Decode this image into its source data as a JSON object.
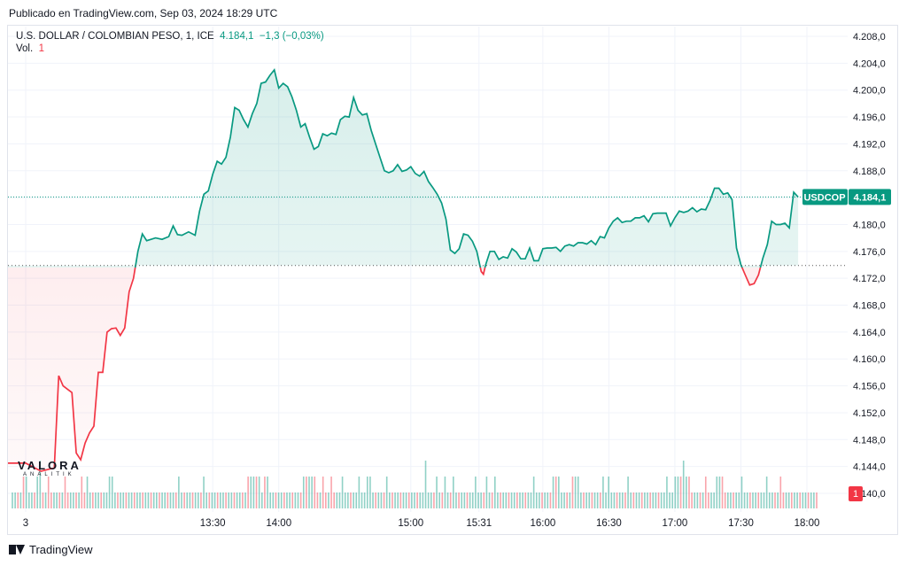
{
  "published": "Publicado en TradingView.com, Sep 03, 2024 18:29 UTC",
  "legend": {
    "symbol": "U.S. DOLLAR / COLOMBIAN PESO, 1, ICE",
    "last": "4.184,1",
    "change": "−1,3 (−0,03%)",
    "vol_label": "Vol.",
    "vol_value": "1"
  },
  "price_tag": {
    "symbol": "USDCOP",
    "value": "4.184,1"
  },
  "volume_tag": "1",
  "watermark": {
    "name": "VALORA",
    "sub": "ANALITIK"
  },
  "footer": {
    "brand": "TradingView"
  },
  "colors": {
    "up": "#089981",
    "down": "#f23645",
    "grid": "#f0f3fa",
    "text": "#131722"
  },
  "chart_data": {
    "type": "area",
    "y_ticks": [
      "4.208,0",
      "4.204,0",
      "4.200,0",
      "4.196,0",
      "4.192,0",
      "4.188,0",
      "4.184,0",
      "4.180,0",
      "4.176,0",
      "4.172,0",
      "4.168,0",
      "4.164,0",
      "4.160,0",
      "4.156,0",
      "4.152,0",
      "4.148,0",
      "4.144,0",
      "4.140,0"
    ],
    "ylim": [
      4139,
      4209
    ],
    "x_ticks": [
      "3",
      "13:30",
      "14:00",
      "15:00",
      "15:31",
      "16:00",
      "16:30",
      "17:00",
      "17:30",
      "18:00"
    ],
    "x_tick_minutes": [
      725,
      810,
      840,
      900,
      931,
      960,
      990,
      1020,
      1050,
      1080
    ],
    "xlim": [
      725,
      1088
    ],
    "baseline": 4173.9,
    "last_price": 4184.1,
    "series": [
      {
        "values": [
          [
            725,
            4144.5
          ],
          [
            732,
            4143.3
          ],
          [
            738,
            4143.8
          ],
          [
            740,
            4157.5
          ],
          [
            742,
            4156
          ],
          [
            744,
            4155.5
          ],
          [
            746,
            4155
          ],
          [
            748,
            4146
          ],
          [
            750,
            4145
          ],
          [
            752,
            4147.5
          ],
          [
            754,
            4149
          ],
          [
            756,
            4150
          ],
          [
            758,
            4158
          ],
          [
            760,
            4158
          ],
          [
            762,
            4164
          ],
          [
            764,
            4164.5
          ],
          [
            766,
            4164.6
          ],
          [
            768,
            4163.5
          ],
          [
            770,
            4164.6
          ],
          [
            772,
            4170
          ],
          [
            774,
            4172
          ],
          [
            776,
            4176
          ],
          [
            778,
            4178.6
          ],
          [
            780,
            4177.6
          ],
          [
            782,
            4177.8
          ],
          [
            784,
            4178
          ],
          [
            787,
            4177.8
          ],
          [
            790,
            4178.2
          ],
          [
            792,
            4179.8
          ],
          [
            794,
            4178.5
          ],
          [
            796,
            4178.4
          ],
          [
            799,
            4178.9
          ],
          [
            802,
            4178.4
          ],
          [
            804,
            4182
          ],
          [
            806,
            4184.5
          ],
          [
            808,
            4185
          ],
          [
            810,
            4187.5
          ],
          [
            812,
            4189.4
          ],
          [
            814,
            4189
          ],
          [
            816,
            4190
          ],
          [
            818,
            4193
          ],
          [
            820,
            4197.4
          ],
          [
            822,
            4197
          ],
          [
            824,
            4195.6
          ],
          [
            826,
            4194.5
          ],
          [
            828,
            4196.5
          ],
          [
            830,
            4198
          ],
          [
            832,
            4201
          ],
          [
            834,
            4201.2
          ],
          [
            836,
            4202.2
          ],
          [
            838,
            4203
          ],
          [
            840,
            4200.3
          ],
          [
            842,
            4201
          ],
          [
            844,
            4200.5
          ],
          [
            846,
            4199
          ],
          [
            848,
            4197
          ],
          [
            850,
            4194.5
          ],
          [
            852,
            4195
          ],
          [
            854,
            4193
          ],
          [
            856,
            4191.2
          ],
          [
            858,
            4191.6
          ],
          [
            860,
            4193.5
          ],
          [
            862,
            4193.2
          ],
          [
            864,
            4193.6
          ],
          [
            866,
            4193.4
          ],
          [
            868,
            4195.6
          ],
          [
            870,
            4196.1
          ],
          [
            872,
            4196
          ],
          [
            874,
            4198.9
          ],
          [
            876,
            4197
          ],
          [
            878,
            4196.3
          ],
          [
            880,
            4196.5
          ],
          [
            882,
            4194
          ],
          [
            884,
            4192
          ],
          [
            886,
            4190
          ],
          [
            888,
            4188
          ],
          [
            890,
            4187.7
          ],
          [
            892,
            4188
          ],
          [
            894,
            4188.9
          ],
          [
            896,
            4187.9
          ],
          [
            898,
            4188.1
          ],
          [
            900,
            4188.6
          ],
          [
            902,
            4187.6
          ],
          [
            904,
            4187.2
          ],
          [
            906,
            4187.9
          ],
          [
            908,
            4186.4
          ],
          [
            910,
            4185.5
          ],
          [
            912,
            4184.5
          ],
          [
            914,
            4183.2
          ],
          [
            916,
            4180.8
          ],
          [
            918,
            4176.2
          ],
          [
            920,
            4175.7
          ],
          [
            922,
            4176.4
          ],
          [
            924,
            4178.6
          ],
          [
            926,
            4178.4
          ],
          [
            928,
            4177.5
          ],
          [
            930,
            4176
          ],
          [
            932,
            4173
          ],
          [
            933,
            4172.6
          ],
          [
            934,
            4174
          ],
          [
            936,
            4176
          ],
          [
            938,
            4176
          ],
          [
            940,
            4174.8
          ],
          [
            942,
            4175.2
          ],
          [
            944,
            4175
          ],
          [
            946,
            4176.4
          ],
          [
            948,
            4175.9
          ],
          [
            950,
            4174.9
          ],
          [
            952,
            4174.9
          ],
          [
            954,
            4176.5
          ],
          [
            956,
            4174.6
          ],
          [
            958,
            4174.6
          ],
          [
            960,
            4176.4
          ],
          [
            962,
            4176.5
          ],
          [
            964,
            4176.5
          ],
          [
            966,
            4176.6
          ],
          [
            968,
            4176
          ],
          [
            970,
            4176.8
          ],
          [
            972,
            4177
          ],
          [
            974,
            4176.8
          ],
          [
            976,
            4177.3
          ],
          [
            978,
            4177.3
          ],
          [
            980,
            4177.1
          ],
          [
            982,
            4177.6
          ],
          [
            984,
            4177
          ],
          [
            986,
            4178.2
          ],
          [
            988,
            4178
          ],
          [
            990,
            4179.5
          ],
          [
            992,
            4180.5
          ],
          [
            994,
            4181
          ],
          [
            996,
            4180.3
          ],
          [
            998,
            4180.5
          ],
          [
            1000,
            4180.5
          ],
          [
            1002,
            4181
          ],
          [
            1004,
            4181
          ],
          [
            1006,
            4181.3
          ],
          [
            1008,
            4180.4
          ],
          [
            1010,
            4181.6
          ],
          [
            1012,
            4181.7
          ],
          [
            1014,
            4181.7
          ],
          [
            1016,
            4181.7
          ],
          [
            1018,
            4179.8
          ],
          [
            1020,
            4181
          ],
          [
            1022,
            4182
          ],
          [
            1024,
            4181.8
          ],
          [
            1026,
            4182
          ],
          [
            1028,
            4182.5
          ],
          [
            1030,
            4181.9
          ],
          [
            1032,
            4182.3
          ],
          [
            1034,
            4182.2
          ],
          [
            1036,
            4183.6
          ],
          [
            1038,
            4185.4
          ],
          [
            1040,
            4185.4
          ],
          [
            1042,
            4184.5
          ],
          [
            1044,
            4184.7
          ],
          [
            1046,
            4183.7
          ],
          [
            1048,
            4176.5
          ],
          [
            1050,
            4174
          ],
          [
            1052,
            4172.5
          ],
          [
            1054,
            4171
          ],
          [
            1056,
            4171.2
          ],
          [
            1058,
            4172.5
          ],
          [
            1060,
            4175
          ],
          [
            1062,
            4177
          ],
          [
            1064,
            4180.5
          ],
          [
            1066,
            4180
          ],
          [
            1068,
            4180
          ],
          [
            1070,
            4180.2
          ],
          [
            1072,
            4179.5
          ],
          [
            1074,
            4184.8
          ],
          [
            1076,
            4184.1
          ]
        ]
      }
    ],
    "volume": [
      1,
      1,
      1,
      1,
      2,
      2,
      1,
      1,
      1,
      2,
      3,
      1,
      1,
      2,
      1,
      1,
      1,
      1,
      1,
      2,
      1,
      1,
      1,
      1,
      1,
      2,
      1,
      2,
      1,
      1,
      1,
      1,
      1,
      1,
      1,
      2,
      2,
      1,
      1,
      1,
      1,
      1,
      1,
      1,
      1,
      1,
      1,
      1,
      1,
      1,
      1,
      1,
      1,
      1,
      1,
      1,
      1,
      1,
      1,
      1,
      2,
      1,
      1,
      1,
      1,
      1,
      1,
      1,
      1,
      2,
      1,
      1,
      1,
      1,
      1,
      1,
      1,
      1,
      1,
      1,
      1,
      1,
      1,
      1,
      1,
      2,
      2,
      2,
      2,
      2,
      1,
      2,
      2,
      1,
      1,
      1,
      1,
      1,
      1,
      1,
      1,
      1,
      1,
      1,
      1,
      2,
      2,
      2,
      2,
      2,
      1,
      1,
      2,
      1,
      1,
      2,
      1,
      1,
      1,
      2,
      1,
      1,
      1,
      1,
      1,
      2,
      1,
      1,
      2,
      2,
      1,
      1,
      1,
      1,
      1,
      2,
      1,
      1,
      1,
      1,
      1,
      1,
      1,
      1,
      1,
      1,
      1,
      1,
      1,
      3,
      1,
      1,
      1,
      2,
      1,
      1,
      2,
      1,
      1,
      2,
      1,
      1,
      1,
      1,
      1,
      1,
      1,
      2,
      1,
      1,
      1,
      2,
      1,
      1,
      2,
      1,
      1,
      1,
      1,
      1,
      1,
      1,
      1,
      1,
      1,
      1,
      1,
      1,
      2,
      1,
      1,
      1,
      1,
      1,
      1,
      2,
      2,
      2,
      1,
      1,
      1,
      1,
      2,
      2,
      2,
      1,
      1,
      1,
      1,
      1,
      1,
      1,
      1,
      2,
      1,
      2,
      1,
      1,
      1,
      1,
      1,
      1,
      2,
      1,
      1,
      1,
      1,
      1,
      1,
      1,
      1,
      1,
      1,
      1,
      1,
      1,
      2,
      1,
      1,
      2,
      2,
      2,
      3,
      2,
      2,
      1,
      1,
      1,
      1,
      1,
      2,
      1,
      1,
      1,
      2,
      2,
      2,
      1,
      1,
      1,
      1,
      1,
      1,
      2,
      1,
      1,
      1,
      1,
      1,
      1,
      1,
      1,
      2,
      1,
      1,
      1,
      1,
      2,
      1,
      1,
      1,
      1,
      1,
      1,
      1,
      1,
      1,
      1,
      1,
      1,
      1
    ]
  }
}
